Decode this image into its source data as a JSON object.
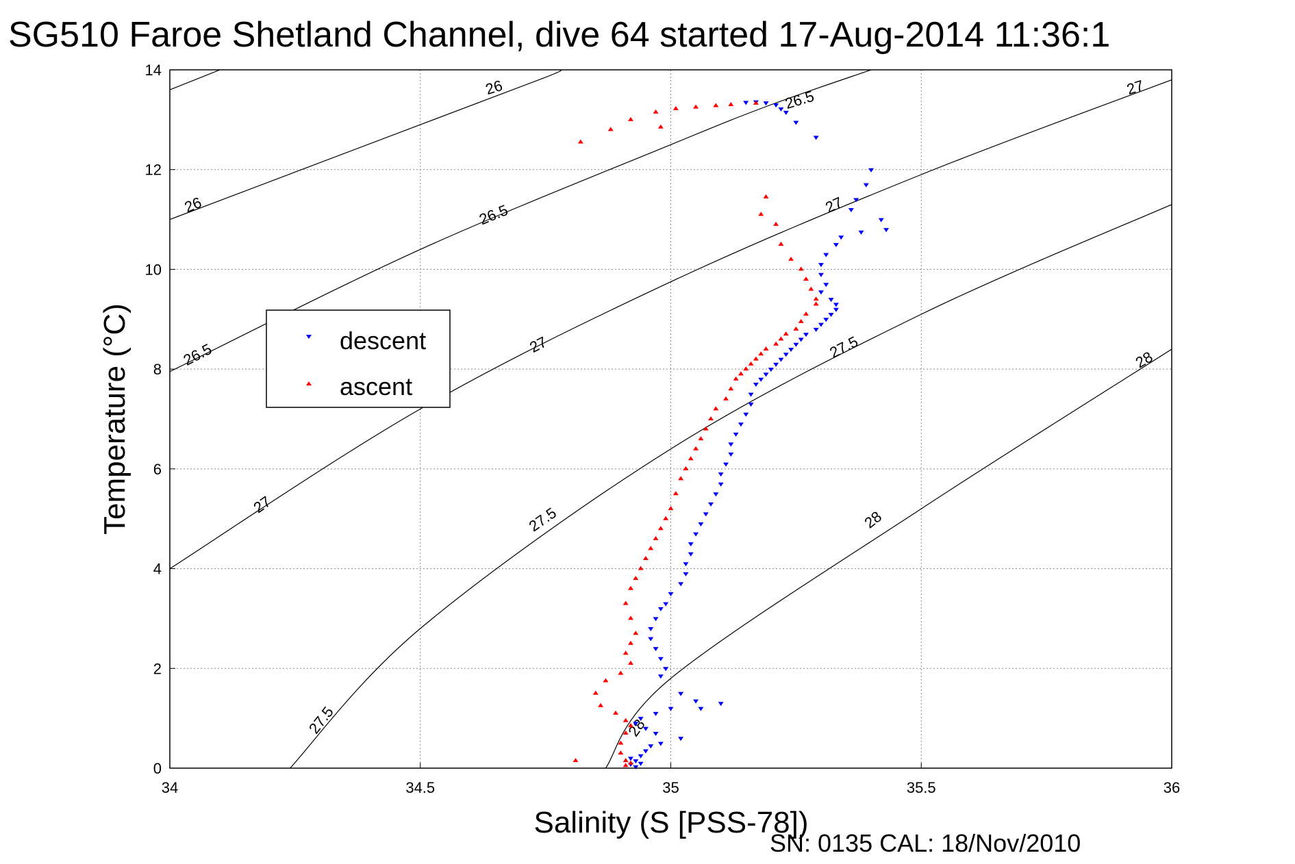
{
  "chart_data": {
    "type": "scatter",
    "title": "SG510 Faroe Shetland Channel, dive 64 started 17-Aug-2014 11:36:1",
    "xlabel": "Salinity (S [PSS-78])",
    "ylabel": "Temperature (°C)",
    "xlim": [
      34,
      36
    ],
    "ylim": [
      0,
      14
    ],
    "xticks": [
      "34",
      "34.5",
      "35",
      "35.5",
      "36"
    ],
    "yticks": [
      "0",
      "2",
      "4",
      "6",
      "8",
      "10",
      "12",
      "14"
    ],
    "grid": true,
    "legend_position": "center-left",
    "footer": "SN: 0135  CAL: 18/Nov/2010",
    "colors": {
      "descent": "#0000ff",
      "ascent": "#ff0000",
      "contour": "#000000"
    },
    "isopycnals": [
      {
        "value": 26,
        "label": "26",
        "points": [
          [
            34,
            13.6
          ],
          [
            34.1,
            14.0
          ]
        ]
      },
      {
        "value": 26,
        "label": "26",
        "points": [
          [
            34,
            11.0
          ],
          [
            34.5,
            12.9
          ],
          [
            34.75,
            13.85
          ],
          [
            34.78,
            14.0
          ]
        ]
      },
      {
        "value": 26.5,
        "label": "26.5",
        "points": [
          [
            34,
            7.95
          ],
          [
            34.5,
            10.4
          ],
          [
            35,
            12.5
          ],
          [
            35.2,
            13.3
          ],
          [
            35.4,
            14.0
          ]
        ]
      },
      {
        "value": 26.5,
        "label": "26.5",
        "points": [
          [
            34.0,
            7.9
          ]
        ]
      },
      {
        "value": 27,
        "label": "27",
        "points": [
          [
            34,
            4.0
          ],
          [
            34.5,
            7.2
          ],
          [
            35,
            9.75
          ],
          [
            35.5,
            11.9
          ],
          [
            36,
            13.8
          ]
        ]
      },
      {
        "value": 27.5,
        "label": "27.5",
        "points": [
          [
            34.24,
            0
          ],
          [
            34.5,
            2.8
          ],
          [
            35,
            6.4
          ],
          [
            35.5,
            9.1
          ],
          [
            36,
            11.3
          ]
        ]
      },
      {
        "value": 28,
        "label": "28",
        "points": [
          [
            34.87,
            0
          ],
          [
            35,
            1.8
          ],
          [
            35.5,
            5.2
          ],
          [
            36,
            8.4
          ]
        ]
      }
    ],
    "contour_labels": [
      {
        "text": "26",
        "x": 34.65,
        "y": 13.55,
        "angle": -17
      },
      {
        "text": "26.5",
        "x": 35.26,
        "y": 13.3,
        "angle": -17
      },
      {
        "text": "27",
        "x": 35.93,
        "y": 13.55,
        "angle": -17
      },
      {
        "text": "26",
        "x": 34.05,
        "y": 11.2,
        "angle": -22
      },
      {
        "text": "26.5",
        "x": 34.65,
        "y": 11.0,
        "angle": -22
      },
      {
        "text": "27",
        "x": 35.33,
        "y": 11.2,
        "angle": -25
      },
      {
        "text": "26.5",
        "x": 34.06,
        "y": 8.2,
        "angle": -27
      },
      {
        "text": "27",
        "x": 34.74,
        "y": 8.4,
        "angle": -27
      },
      {
        "text": "27.5",
        "x": 35.35,
        "y": 8.35,
        "angle": -27
      },
      {
        "text": "28",
        "x": 35.95,
        "y": 8.1,
        "angle": -30
      },
      {
        "text": "27",
        "x": 34.19,
        "y": 5.2,
        "angle": -35
      },
      {
        "text": "27.5",
        "x": 34.75,
        "y": 4.9,
        "angle": -35
      },
      {
        "text": "28",
        "x": 35.41,
        "y": 4.9,
        "angle": -38
      },
      {
        "text": "27.5",
        "x": 34.31,
        "y": 0.9,
        "angle": -52
      },
      {
        "text": "28",
        "x": 34.94,
        "y": 0.75,
        "angle": -55
      }
    ],
    "series": [
      {
        "name": "descent",
        "marker": "triangle-down",
        "points": [
          [
            35.15,
            13.35
          ],
          [
            35.17,
            13.36
          ],
          [
            35.19,
            13.34
          ],
          [
            35.21,
            13.3
          ],
          [
            35.22,
            13.22
          ],
          [
            35.23,
            13.15
          ],
          [
            35.29,
            12.65
          ],
          [
            35.25,
            12.95
          ],
          [
            35.4,
            12.0
          ],
          [
            35.39,
            11.7
          ],
          [
            35.37,
            11.4
          ],
          [
            35.36,
            11.2
          ],
          [
            35.42,
            11.0
          ],
          [
            35.43,
            10.8
          ],
          [
            35.38,
            10.75
          ],
          [
            35.34,
            10.65
          ],
          [
            35.33,
            10.5
          ],
          [
            35.31,
            10.3
          ],
          [
            35.3,
            10.1
          ],
          [
            35.3,
            9.9
          ],
          [
            35.31,
            9.7
          ],
          [
            35.3,
            9.55
          ],
          [
            35.32,
            9.4
          ],
          [
            35.33,
            9.3
          ],
          [
            35.33,
            9.2
          ],
          [
            35.32,
            9.1
          ],
          [
            35.31,
            9.0
          ],
          [
            35.3,
            8.9
          ],
          [
            35.29,
            8.8
          ],
          [
            35.27,
            8.7
          ],
          [
            35.26,
            8.6
          ],
          [
            35.25,
            8.5
          ],
          [
            35.24,
            8.4
          ],
          [
            35.23,
            8.3
          ],
          [
            35.22,
            8.2
          ],
          [
            35.21,
            8.1
          ],
          [
            35.2,
            8.0
          ],
          [
            35.19,
            7.9
          ],
          [
            35.18,
            7.8
          ],
          [
            35.17,
            7.7
          ],
          [
            35.16,
            7.5
          ],
          [
            35.16,
            7.3
          ],
          [
            35.15,
            7.1
          ],
          [
            35.14,
            6.9
          ],
          [
            35.13,
            6.7
          ],
          [
            35.12,
            6.5
          ],
          [
            35.12,
            6.3
          ],
          [
            35.11,
            6.1
          ],
          [
            35.1,
            5.9
          ],
          [
            35.1,
            5.7
          ],
          [
            35.09,
            5.5
          ],
          [
            35.08,
            5.3
          ],
          [
            35.07,
            5.1
          ],
          [
            35.06,
            4.9
          ],
          [
            35.05,
            4.7
          ],
          [
            35.04,
            4.5
          ],
          [
            35.04,
            4.3
          ],
          [
            35.03,
            4.1
          ],
          [
            35.03,
            3.9
          ],
          [
            35.02,
            3.7
          ],
          [
            35.0,
            3.5
          ],
          [
            34.99,
            3.3
          ],
          [
            34.98,
            3.2
          ],
          [
            34.97,
            3.0
          ],
          [
            34.96,
            2.8
          ],
          [
            34.96,
            2.6
          ],
          [
            34.97,
            2.4
          ],
          [
            34.98,
            2.2
          ],
          [
            34.99,
            2.0
          ],
          [
            34.98,
            1.85
          ],
          [
            35.02,
            1.5
          ],
          [
            35.05,
            1.35
          ],
          [
            35.1,
            1.3
          ],
          [
            35.06,
            1.2
          ],
          [
            35.0,
            1.2
          ],
          [
            34.97,
            1.1
          ],
          [
            34.94,
            1.0
          ],
          [
            34.93,
            0.9
          ],
          [
            34.95,
            0.8
          ],
          [
            34.97,
            0.7
          ],
          [
            35.02,
            0.6
          ],
          [
            34.98,
            0.5
          ],
          [
            34.96,
            0.45
          ],
          [
            34.95,
            0.35
          ],
          [
            34.94,
            0.25
          ],
          [
            34.93,
            0.15
          ],
          [
            34.92,
            0.08
          ],
          [
            34.93,
            0.03
          ],
          [
            34.94,
            0.1
          ],
          [
            34.92,
            0.2
          ]
        ]
      },
      {
        "name": "ascent",
        "marker": "triangle-up",
        "points": [
          [
            35.17,
            13.33
          ],
          [
            35.12,
            13.3
          ],
          [
            35.09,
            13.28
          ],
          [
            35.05,
            13.25
          ],
          [
            35.01,
            13.22
          ],
          [
            34.97,
            13.15
          ],
          [
            34.92,
            13.0
          ],
          [
            34.88,
            12.8
          ],
          [
            34.98,
            12.85
          ],
          [
            34.82,
            12.55
          ],
          [
            35.19,
            11.45
          ],
          [
            35.18,
            11.1
          ],
          [
            35.21,
            10.9
          ],
          [
            35.22,
            10.5
          ],
          [
            35.24,
            10.2
          ],
          [
            35.26,
            10.0
          ],
          [
            35.27,
            9.8
          ],
          [
            35.28,
            9.6
          ],
          [
            35.29,
            9.4
          ],
          [
            35.29,
            9.3
          ],
          [
            35.27,
            9.1
          ],
          [
            35.26,
            8.95
          ],
          [
            35.25,
            8.8
          ],
          [
            35.23,
            8.7
          ],
          [
            35.22,
            8.6
          ],
          [
            35.21,
            8.5
          ],
          [
            35.19,
            8.4
          ],
          [
            35.18,
            8.3
          ],
          [
            35.17,
            8.2
          ],
          [
            35.16,
            8.1
          ],
          [
            35.15,
            8.0
          ],
          [
            35.14,
            7.9
          ],
          [
            35.13,
            7.8
          ],
          [
            35.12,
            7.6
          ],
          [
            35.11,
            7.4
          ],
          [
            35.09,
            7.2
          ],
          [
            35.08,
            7.0
          ],
          [
            35.07,
            6.8
          ],
          [
            35.06,
            6.6
          ],
          [
            35.05,
            6.4
          ],
          [
            35.04,
            6.2
          ],
          [
            35.03,
            6.0
          ],
          [
            35.02,
            5.8
          ],
          [
            35.01,
            5.5
          ],
          [
            35.0,
            5.2
          ],
          [
            34.99,
            5.0
          ],
          [
            34.98,
            4.8
          ],
          [
            34.97,
            4.6
          ],
          [
            34.96,
            4.4
          ],
          [
            34.95,
            4.2
          ],
          [
            34.94,
            4.0
          ],
          [
            34.93,
            3.8
          ],
          [
            34.92,
            3.6
          ],
          [
            34.91,
            3.3
          ],
          [
            34.92,
            3.0
          ],
          [
            34.93,
            2.7
          ],
          [
            34.92,
            2.5
          ],
          [
            34.91,
            2.3
          ],
          [
            34.92,
            2.1
          ],
          [
            34.9,
            1.9
          ],
          [
            34.87,
            1.75
          ],
          [
            34.85,
            1.5
          ],
          [
            34.86,
            1.25
          ],
          [
            34.89,
            1.1
          ],
          [
            34.91,
            0.95
          ],
          [
            34.92,
            0.85
          ],
          [
            34.91,
            0.7
          ],
          [
            34.9,
            0.5
          ],
          [
            34.9,
            0.3
          ],
          [
            34.91,
            0.15
          ],
          [
            34.81,
            0.15
          ],
          [
            34.91,
            0.05
          ],
          [
            34.92,
            0.1
          ]
        ]
      }
    ]
  }
}
